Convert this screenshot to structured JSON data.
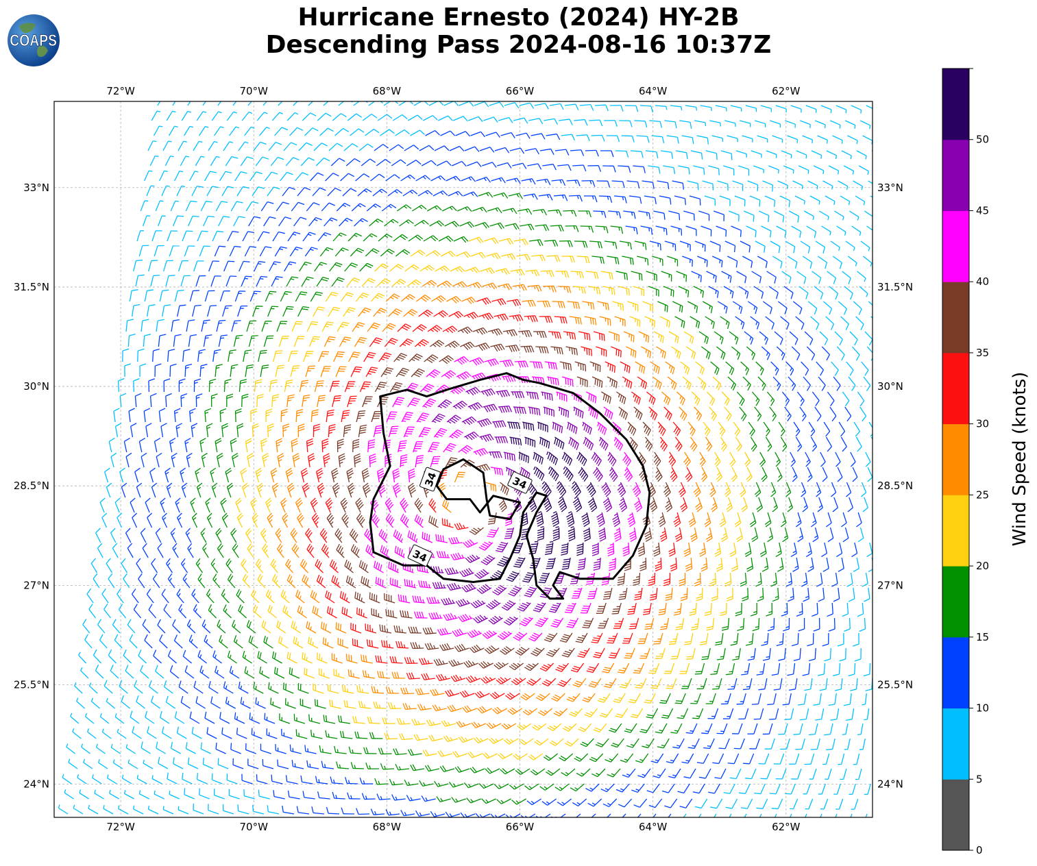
{
  "title": {
    "line1": "Hurricane Ernesto (2024) HY-2B",
    "line2": "Descending Pass 2024-08-16 10:37Z"
  },
  "logo": {
    "text": "COAPS",
    "icon": "globe-icon"
  },
  "map": {
    "projection": "rectangular lat/lon",
    "lon_range": [
      -73,
      -60.7
    ],
    "lat_range": [
      23.5,
      34.3
    ],
    "grid": true,
    "lon_ticks": [
      {
        "value": -72,
        "label": "72°W"
      },
      {
        "value": -70,
        "label": "70°W"
      },
      {
        "value": -68,
        "label": "68°W"
      },
      {
        "value": -66,
        "label": "66°W"
      },
      {
        "value": -64,
        "label": "64°W"
      },
      {
        "value": -62,
        "label": "62°W"
      }
    ],
    "lat_ticks": [
      {
        "value": 33,
        "label": "33°N"
      },
      {
        "value": 31.5,
        "label": "31.5°N"
      },
      {
        "value": 30,
        "label": "30°N"
      },
      {
        "value": 28.5,
        "label": "28.5°N"
      },
      {
        "value": 27,
        "label": "27°N"
      },
      {
        "value": 25.5,
        "label": "25.5°N"
      },
      {
        "value": 24,
        "label": "24°N"
      }
    ],
    "storm_center": {
      "lon": -66.7,
      "lat": 28.3
    },
    "wind_barbs": "circulation of wind barbs colored by speed",
    "contour": {
      "level": "34",
      "labels": [
        "34",
        "34",
        "34"
      ],
      "color": "#000000",
      "outline": [
        [
          -68.1,
          29.85
        ],
        [
          -67.7,
          29.95
        ],
        [
          -67.4,
          29.85
        ],
        [
          -67.1,
          29.95
        ],
        [
          -66.6,
          30.1
        ],
        [
          -66.2,
          30.2
        ],
        [
          -65.95,
          30.1
        ],
        [
          -65.7,
          30.05
        ],
        [
          -65.2,
          29.9
        ],
        [
          -64.8,
          29.6
        ],
        [
          -64.4,
          29.2
        ],
        [
          -64.15,
          28.8
        ],
        [
          -64.05,
          28.4
        ],
        [
          -64.1,
          27.9
        ],
        [
          -64.3,
          27.45
        ],
        [
          -64.6,
          27.1
        ],
        [
          -65.1,
          27.1
        ],
        [
          -65.4,
          27.2
        ],
        [
          -65.5,
          27.0
        ],
        [
          -65.35,
          26.8
        ],
        [
          -65.55,
          26.8
        ],
        [
          -65.75,
          27.0
        ],
        [
          -65.8,
          27.4
        ],
        [
          -65.9,
          27.75
        ],
        [
          -65.75,
          28.1
        ],
        [
          -65.6,
          28.35
        ],
        [
          -65.75,
          28.4
        ],
        [
          -65.95,
          28.1
        ],
        [
          -66.0,
          27.75
        ],
        [
          -66.15,
          27.4
        ],
        [
          -66.3,
          27.1
        ],
        [
          -66.7,
          27.05
        ],
        [
          -67.15,
          27.1
        ],
        [
          -67.4,
          27.3
        ],
        [
          -67.75,
          27.3
        ],
        [
          -68.2,
          27.5
        ],
        [
          -68.25,
          27.95
        ],
        [
          -68.2,
          28.3
        ],
        [
          -67.95,
          28.8
        ],
        [
          -68.05,
          29.3
        ],
        [
          -68.1,
          29.85
        ]
      ],
      "inner": [
        [
          -67.15,
          28.75
        ],
        [
          -66.85,
          28.9
        ],
        [
          -66.55,
          28.7
        ],
        [
          -66.5,
          28.3
        ],
        [
          -66.45,
          28.05
        ],
        [
          -66.15,
          28.0
        ],
        [
          -66.0,
          28.25
        ],
        [
          -66.4,
          28.35
        ],
        [
          -66.6,
          28.1
        ],
        [
          -66.75,
          28.3
        ],
        [
          -67.1,
          28.3
        ],
        [
          -67.25,
          28.5
        ],
        [
          -67.15,
          28.75
        ]
      ],
      "label_positions": [
        {
          "lon": -67.35,
          "lat": 28.6,
          "rot": -70
        },
        {
          "lon": -66.0,
          "lat": 28.55,
          "rot": 25
        },
        {
          "lon": -67.5,
          "lat": 27.45,
          "rot": 25
        }
      ]
    }
  },
  "colorbar": {
    "label": "Wind Speed (knots)",
    "ticks": [
      "0",
      "5",
      "10",
      "15",
      "20",
      "25",
      "30",
      "35",
      "40",
      "45",
      "50"
    ],
    "bins": [
      {
        "min": 0,
        "max": 5,
        "color": "#555555"
      },
      {
        "min": 5,
        "max": 10,
        "color": "#00bfff"
      },
      {
        "min": 10,
        "max": 15,
        "color": "#0040ff"
      },
      {
        "min": 15,
        "max": 20,
        "color": "#009000"
      },
      {
        "min": 20,
        "max": 25,
        "color": "#ffd010"
      },
      {
        "min": 25,
        "max": 30,
        "color": "#ff8c00"
      },
      {
        "min": 30,
        "max": 35,
        "color": "#ff1010"
      },
      {
        "min": 35,
        "max": 40,
        "color": "#7a3a28"
      },
      {
        "min": 40,
        "max": 45,
        "color": "#ff00ff"
      },
      {
        "min": 45,
        "max": 50,
        "color": "#8800b0"
      },
      {
        "min": 50,
        "max": 55,
        "color": "#2a0060"
      }
    ]
  }
}
